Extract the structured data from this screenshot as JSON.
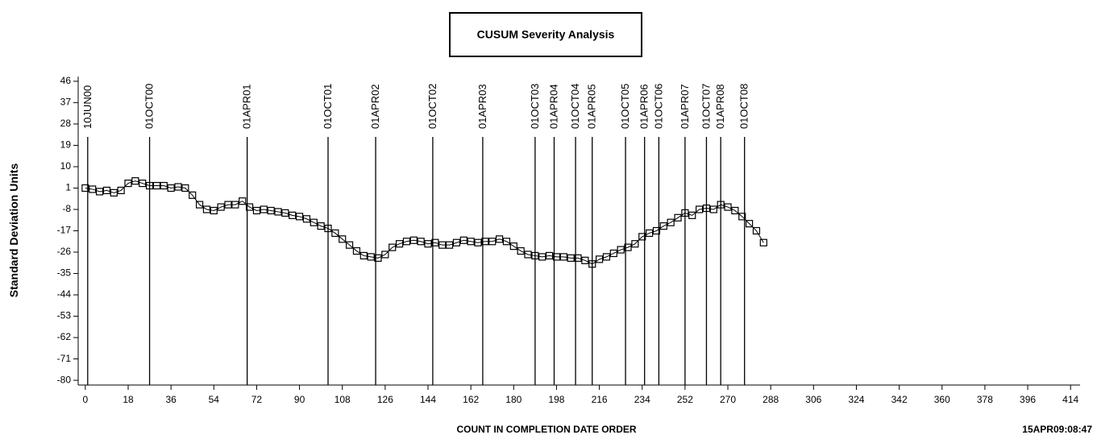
{
  "chart_data": {
    "type": "line",
    "title": "CUSUM Severity Analysis",
    "x_label": "COUNT IN COMPLETION DATE ORDER",
    "y_label": "Standard Deviation Units",
    "footnote": "15APR09:08:47",
    "xlim": [
      -3,
      418
    ],
    "ylim": [
      -82,
      48
    ],
    "xticks": [
      0,
      18,
      36,
      54,
      72,
      90,
      108,
      126,
      144,
      162,
      180,
      198,
      216,
      234,
      252,
      270,
      288,
      306,
      324,
      342,
      360,
      378,
      396,
      414
    ],
    "yticks": [
      46,
      37,
      28,
      19,
      10,
      1,
      -8,
      -17,
      -26,
      -35,
      -44,
      -53,
      -62,
      -71,
      -80
    ],
    "reference_lines": [
      {
        "value": 1,
        "label": "10JUN00"
      },
      {
        "value": 27,
        "label": "01OCT00"
      },
      {
        "value": 68,
        "label": "01APR01"
      },
      {
        "value": 102,
        "label": "01OCT01"
      },
      {
        "value": 122,
        "label": "01APR02"
      },
      {
        "value": 146,
        "label": "01OCT02"
      },
      {
        "value": 167,
        "label": "01APR03"
      },
      {
        "value": 189,
        "label": "01OCT03"
      },
      {
        "value": 197,
        "label": "01APR04"
      },
      {
        "value": 206,
        "label": "01OCT04"
      },
      {
        "value": 213,
        "label": "01APR05"
      },
      {
        "value": 227,
        "label": "01OCT05"
      },
      {
        "value": 235,
        "label": "01APR06"
      },
      {
        "value": 241,
        "label": "01OCT06"
      },
      {
        "value": 252,
        "label": "01APR07"
      },
      {
        "value": 261,
        "label": "01OCT07"
      },
      {
        "value": 267,
        "label": "01APR08"
      },
      {
        "value": 277,
        "label": "01OCT08"
      }
    ],
    "x": [
      0,
      3,
      6,
      9,
      12,
      15,
      18,
      21,
      24,
      27,
      30,
      33,
      36,
      39,
      42,
      45,
      48,
      51,
      54,
      57,
      60,
      63,
      66,
      69,
      72,
      75,
      78,
      81,
      84,
      87,
      90,
      93,
      96,
      99,
      102,
      105,
      108,
      111,
      114,
      117,
      120,
      123,
      126,
      129,
      132,
      135,
      138,
      141,
      144,
      147,
      150,
      153,
      156,
      159,
      162,
      165,
      168,
      171,
      174,
      177,
      180,
      183,
      186,
      189,
      192,
      195,
      198,
      201,
      204,
      207,
      210,
      213,
      216,
      219,
      222,
      225,
      228,
      231,
      234,
      237,
      240,
      243,
      246,
      249,
      252,
      255,
      258,
      261,
      264,
      267,
      270,
      273,
      276,
      279,
      282,
      285
    ],
    "series": [
      {
        "color": "#000000",
        "values": [
          1,
          0.5,
          -0.5,
          0,
          -1,
          0,
          3,
          4,
          3,
          2,
          2,
          2,
          1,
          1.5,
          1,
          -2,
          -6,
          -8,
          -8.5,
          -7,
          -6,
          -6,
          -4.5,
          -7,
          -8.5,
          -8,
          -8.5,
          -9,
          -9.5,
          -10.5,
          -11,
          -12,
          -13.5,
          -15,
          -16,
          -18,
          -20.5,
          -23,
          -25.5,
          -27.5,
          -28,
          -28.5,
          -27,
          -24,
          -22.5,
          -21.5,
          -21,
          -21.5,
          -22.5,
          -22,
          -23,
          -23,
          -22,
          -21,
          -21.5,
          -22,
          -21.5,
          -21.5,
          -20.5,
          -21.5,
          -23.5,
          -25.5,
          -27,
          -27.5,
          -28,
          -27.5,
          -28,
          -28,
          -28.5,
          -28.5,
          -29.5,
          -31,
          -29,
          -28,
          -26.5,
          -25,
          -24,
          -22.5,
          -19.5,
          -18,
          -17,
          -15,
          -13.5,
          -11.5,
          -9.5,
          -10.5,
          -8,
          -7.5,
          -8,
          -6,
          -7,
          -8.5,
          -11,
          -14,
          -17,
          -22
        ]
      }
    ]
  }
}
